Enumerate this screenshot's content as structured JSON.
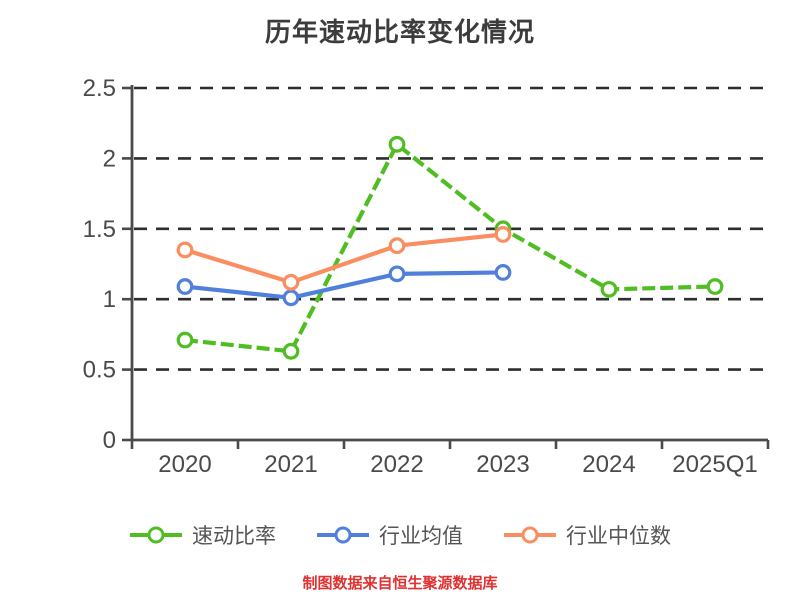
{
  "chart_data": {
    "type": "line",
    "title": "历年速动比率变化情况",
    "categories": [
      "2020",
      "2021",
      "2022",
      "2023",
      "2024",
      "2025Q1"
    ],
    "series": [
      {
        "id": "quick-ratio",
        "name": "速动比率",
        "color": "#50be23",
        "line_style": "dashed",
        "values": [
          0.71,
          0.63,
          2.1,
          1.5,
          1.07,
          1.09
        ]
      },
      {
        "id": "industry-average",
        "name": "行业均值",
        "color": "#5080dc",
        "line_style": "solid",
        "values": [
          1.09,
          1.01,
          1.18,
          1.19,
          null,
          null
        ]
      },
      {
        "id": "industry-median",
        "name": "行业中位数",
        "color": "#fa8e61",
        "line_style": "solid",
        "values": [
          1.35,
          1.12,
          1.38,
          1.46,
          null,
          null
        ]
      }
    ],
    "ylim": [
      0,
      2.5
    ],
    "yticks": [
      "0",
      "0.5",
      "1",
      "1.5",
      "2",
      "2.5"
    ],
    "grid": "horizontal-dashed",
    "legend_position": "bottom",
    "marker": "circle-white-fill"
  },
  "style": {
    "title_color": "#3c3c3c",
    "axis_color": "#4a4a4a",
    "gridline_color": "#2e2e2e",
    "tick_label_color": "#4a4a4a",
    "legend_text_color": "#555555",
    "marker_fill": "#ffffff",
    "footer_color": "#e03131",
    "background": "#ffffff"
  },
  "footer": {
    "source_note": "制图数据来自恒生聚源数据库"
  }
}
